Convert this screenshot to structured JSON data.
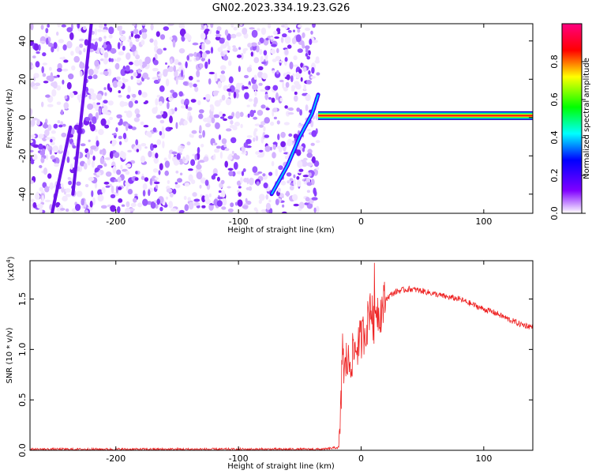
{
  "title": "GN02.2023.334.19.23.G26",
  "chart_data": [
    {
      "type": "heatmap",
      "xlabel": "Height of straight line (km)",
      "ylabel": "Frequency (Hz)",
      "xlim": [
        -270,
        140
      ],
      "ylim": [
        -50,
        49
      ],
      "xticks": [
        -200,
        -100,
        0,
        100
      ],
      "xtick_labels": [
        "-200",
        "-100",
        "0",
        "100"
      ],
      "yticks": [
        -40,
        -20,
        0,
        20,
        40
      ],
      "ytick_labels": [
        "-40",
        "-20",
        "0",
        "20",
        "40"
      ],
      "colorbar": {
        "label": "Normalized spectral amplitude",
        "range": [
          0,
          1
        ],
        "ticks": [
          0,
          0.2,
          0.4,
          0.6,
          0.8
        ],
        "tick_labels": [
          "0.0",
          "0.2",
          "0.4",
          "0.6",
          "0.8"
        ],
        "colormap": [
          "#ffffff",
          "#8000ff",
          "#0000ff",
          "#00ffff",
          "#00ff00",
          "#ffff00",
          "#ff0000",
          "#ff0080"
        ]
      },
      "noise_region_x": [
        -270,
        -35
      ],
      "signal_track": {
        "descending_x": [
          -73,
          -60,
          -50,
          -40,
          -35
        ],
        "descending_y": [
          -40,
          -25,
          -10,
          2,
          12
        ],
        "carrier_x": [
          -35,
          140
        ],
        "carrier_y": 1
      },
      "grid": false
    },
    {
      "type": "line",
      "xlabel": "Height of straight line (km)",
      "ylabel": "SNR (10 * v/v)",
      "y_multiplier_label": "(x10",
      "y_multiplier_exp": "4",
      "y_multiplier_close": ")",
      "xlim": [
        -270,
        140
      ],
      "ylim": [
        0,
        1.88
      ],
      "xticks": [
        -200,
        -100,
        0,
        100
      ],
      "xtick_labels": [
        "-200",
        "-100",
        "0",
        "100"
      ],
      "yticks": [
        0,
        0.5,
        1.0,
        1.5
      ],
      "ytick_labels": [
        "0.0",
        "0.5",
        "1.0",
        "1.5"
      ],
      "color": "#ee2222",
      "series": [
        {
          "x": [
            -270,
            -100,
            -30,
            -18,
            -17,
            -16,
            -15,
            -14,
            -12,
            -10,
            -5,
            0,
            5,
            8,
            10,
            12,
            15,
            20,
            25,
            30,
            40,
            50,
            60,
            70,
            80,
            90,
            100,
            110,
            120,
            130,
            140
          ],
          "y": [
            0.01,
            0.01,
            0.01,
            0.03,
            0.2,
            0.6,
            1.2,
            0.7,
            0.9,
            0.85,
            1.0,
            1.1,
            1.25,
            1.5,
            1.2,
            1.45,
            1.35,
            1.5,
            1.55,
            1.58,
            1.6,
            1.58,
            1.55,
            1.52,
            1.5,
            1.45,
            1.4,
            1.36,
            1.3,
            1.25,
            1.22
          ]
        }
      ],
      "grid": false
    }
  ]
}
